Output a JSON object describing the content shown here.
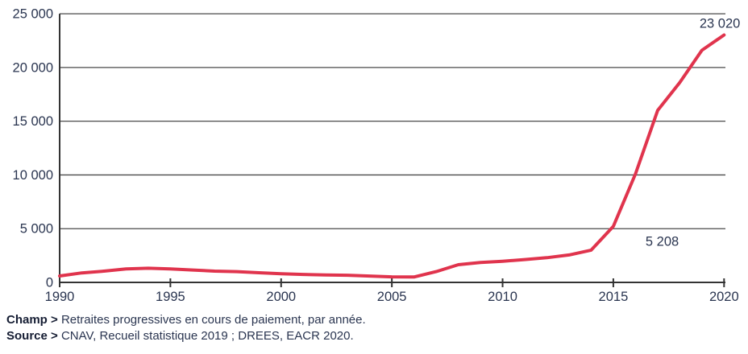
{
  "chart_data": {
    "type": "line",
    "x": [
      1990,
      1991,
      1992,
      1993,
      1994,
      1995,
      1996,
      1997,
      1998,
      1999,
      2000,
      2001,
      2002,
      2003,
      2004,
      2005,
      2006,
      2007,
      2008,
      2009,
      2010,
      2011,
      2012,
      2013,
      2014,
      2015,
      2016,
      2017,
      2018,
      2019,
      2020
    ],
    "series": [
      {
        "name": "Retraites progressives en cours de paiement",
        "values": [
          600,
          880,
          1050,
          1250,
          1320,
          1250,
          1150,
          1050,
          1000,
          900,
          800,
          740,
          700,
          670,
          590,
          520,
          500,
          1000,
          1650,
          1850,
          1970,
          2130,
          2300,
          2550,
          3000,
          5208,
          10100,
          16000,
          18600,
          21600,
          23020
        ]
      }
    ],
    "title": "",
    "xlabel": "",
    "ylabel": "",
    "xlim": [
      1990,
      2020
    ],
    "ylim": [
      0,
      25000
    ],
    "x_ticks": [
      1990,
      1995,
      2000,
      2005,
      2010,
      2015,
      2020
    ],
    "x_tick_labels": [
      "1990",
      "1995",
      "2000",
      "2005",
      "2010",
      "2015",
      "2020"
    ],
    "y_ticks": [
      0,
      5000,
      10000,
      15000,
      20000,
      25000
    ],
    "y_tick_labels": [
      "0",
      "5 000",
      "10 000",
      "15 000",
      "20 000",
      "25 000"
    ],
    "grid": "horizontal",
    "legend": "none",
    "annotations": [
      {
        "x": 2015,
        "y": 5208,
        "label": "5 208",
        "position": "below-right"
      },
      {
        "x": 2020,
        "y": 23020,
        "label": "23 020",
        "position": "above-left"
      }
    ],
    "colors": {
      "line": "#e0344d",
      "grid": "#4a4a4a",
      "axis": "#333333",
      "tick_text": "#2a3550",
      "annotation_text": "#2a3550",
      "background": "#ffffff"
    }
  },
  "footer": {
    "champ_label": "Champ >",
    "champ_text": "Retraites progressives en cours de paiement, par année.",
    "source_label": "Source >",
    "source_text": "CNAV, Recueil statistique 2019 ; DREES, EACR 2020."
  }
}
